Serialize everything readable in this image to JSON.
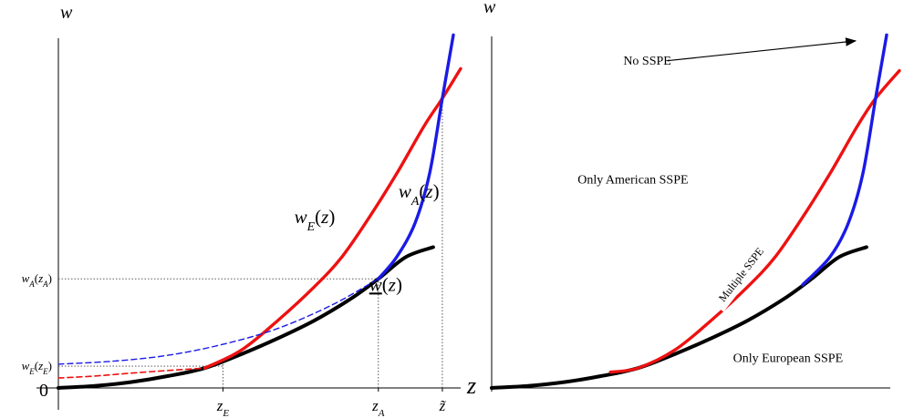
{
  "colors": {
    "axis": "#000000",
    "baseline_curve": "#000000",
    "european_curve": "#ee1111",
    "american_curve": "#1a1ae6",
    "guide": "#444444"
  },
  "chart_data": [
    {
      "type": "line",
      "panel": "left",
      "xlabel": "z",
      "ylabel": "w",
      "origin_label": "0",
      "x_ticks": [
        {
          "x": 9.0,
          "base": "z",
          "sub": "E"
        },
        {
          "x": 17.5,
          "base": "z",
          "sub": "A"
        },
        {
          "x": 21.0,
          "base": "z̃",
          "sub": ""
        }
      ],
      "y_ticks": [
        {
          "y": 1.1,
          "text": "w",
          "sub": "E",
          "arg_base": "z",
          "arg_sub": "E"
        },
        {
          "y": 5.5,
          "text": "w",
          "sub": "A",
          "arg_base": "z",
          "arg_sub": "A"
        }
      ],
      "xlim": [
        0,
        22.5
      ],
      "ylim": [
        0,
        18
      ],
      "series": [
        {
          "key": "baseline",
          "style": "solid",
          "x": [
            0,
            2,
            4,
            6,
            8,
            10,
            12,
            14,
            16,
            17.5,
            19,
            20.5
          ],
          "y": [
            0,
            0.1,
            0.3,
            0.6,
            1.0,
            1.7,
            2.5,
            3.4,
            4.5,
            5.5,
            6.6,
            7.1
          ]
        },
        {
          "key": "european",
          "style": "solid",
          "x": [
            8,
            10,
            12,
            14,
            15.5,
            17,
            18.5,
            20,
            21,
            22
          ],
          "y": [
            1.0,
            1.9,
            3.4,
            5.1,
            6.6,
            8.6,
            10.8,
            13.2,
            14.6,
            16.1
          ]
        },
        {
          "key": "european_extension",
          "style": "dashed",
          "x": [
            0,
            2,
            4,
            6,
            8
          ],
          "y": [
            0.5,
            0.6,
            0.75,
            0.88,
            1.0
          ]
        },
        {
          "key": "american",
          "style": "solid",
          "x": [
            17.5,
            18.5,
            19.5,
            20.3,
            21,
            21.6
          ],
          "y": [
            5.5,
            6.6,
            8.3,
            10.8,
            14.6,
            17.8
          ]
        },
        {
          "key": "american_extension",
          "style": "dashed",
          "x": [
            0,
            3,
            6,
            9,
            12,
            15,
            17.5
          ],
          "y": [
            1.2,
            1.35,
            1.65,
            2.2,
            3.0,
            4.2,
            5.5
          ]
        }
      ],
      "curve_labels": [
        {
          "series": "european",
          "base": "w",
          "sub": "E",
          "arg": "(z)",
          "x": 12.9,
          "y": 8.3
        },
        {
          "series": "american",
          "base": "w",
          "sub": "A",
          "arg": "(z)",
          "x": 18.6,
          "y": 9.6
        },
        {
          "series": "baseline",
          "base": "w",
          "sub": "",
          "arg": "(z)",
          "underline": true,
          "x": 17.0,
          "y": 4.9
        }
      ]
    },
    {
      "type": "line",
      "panel": "right",
      "ylabel": "w",
      "xlim": [
        0,
        22.5
      ],
      "ylim": [
        0,
        18
      ],
      "series": [
        {
          "key": "baseline",
          "style": "solid",
          "x": [
            0,
            2,
            4,
            6,
            8,
            10,
            12,
            14,
            16,
            17.5,
            19,
            20.5
          ],
          "y": [
            0,
            0.1,
            0.3,
            0.6,
            1.0,
            1.7,
            2.5,
            3.4,
            4.5,
            5.5,
            6.6,
            7.1
          ]
        },
        {
          "key": "european",
          "style": "solid",
          "x": [
            6.5,
            8,
            10,
            12,
            14,
            15.5,
            17,
            18.5,
            20,
            21,
            22.3
          ],
          "y": [
            0.8,
            1.0,
            1.9,
            3.4,
            5.1,
            6.6,
            8.6,
            10.8,
            13.2,
            14.6,
            16.0
          ]
        },
        {
          "key": "american",
          "style": "solid",
          "x": [
            17.0,
            18.5,
            19.5,
            20.3,
            21,
            21.6
          ],
          "y": [
            5.2,
            6.6,
            8.3,
            10.8,
            14.6,
            17.8
          ]
        }
      ],
      "region_labels": [
        {
          "text": "No SSPE",
          "x": 7.2,
          "y": 16.3
        },
        {
          "text": "Only American SSPE",
          "x": 4.7,
          "y": 10.3
        },
        {
          "text": "Multiple SSPE",
          "x": 13.8,
          "y": 5.6,
          "rotate": -52
        },
        {
          "text": "Only European SSPE",
          "x": 13.2,
          "y": 1.3
        }
      ],
      "arrow": {
        "from": [
          9.6,
          16.5
        ],
        "to": [
          19.9,
          17.5
        ]
      }
    }
  ]
}
